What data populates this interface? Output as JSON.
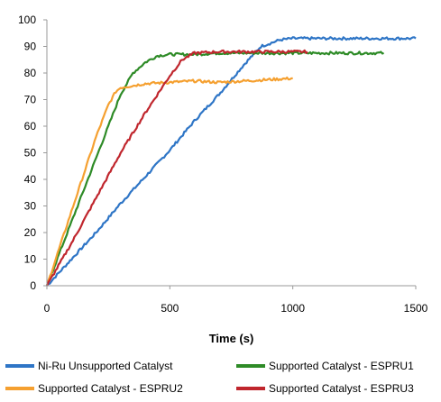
{
  "chart_data": {
    "type": "line",
    "xlabel": "Time (s)",
    "ylabel": "",
    "xlim": [
      0,
      1500
    ],
    "ylim": [
      0,
      100
    ],
    "xticks": [
      "0",
      "500",
      "1000",
      "1500"
    ],
    "yticks": [
      "0",
      "10",
      "20",
      "30",
      "40",
      "50",
      "60",
      "70",
      "80",
      "90",
      "100"
    ],
    "grid": false,
    "legend_position": "bottom",
    "series": [
      {
        "name": "Ni-Ru Unsupported Catalyst",
        "color": "#2e75c6",
        "points": [
          [
            0,
            0
          ],
          [
            100,
            10
          ],
          [
            200,
            20
          ],
          [
            300,
            31
          ],
          [
            400,
            41
          ],
          [
            500,
            51
          ],
          [
            600,
            62
          ],
          [
            700,
            72
          ],
          [
            800,
            83
          ],
          [
            870,
            90
          ],
          [
            950,
            92.5
          ],
          [
            1000,
            93
          ],
          [
            1100,
            93
          ],
          [
            1200,
            93
          ],
          [
            1300,
            93
          ],
          [
            1400,
            93
          ],
          [
            1500,
            93
          ]
        ]
      },
      {
        "name": "Supported Catalyst - ESPRU1",
        "color": "#2e8b27",
        "points": [
          [
            0,
            0
          ],
          [
            50,
            12
          ],
          [
            100,
            24
          ],
          [
            150,
            36
          ],
          [
            200,
            48
          ],
          [
            250,
            60
          ],
          [
            300,
            72
          ],
          [
            350,
            80
          ],
          [
            400,
            84
          ],
          [
            450,
            86.5
          ],
          [
            500,
            87
          ],
          [
            600,
            87
          ],
          [
            700,
            87.5
          ],
          [
            800,
            87.5
          ],
          [
            900,
            87.5
          ],
          [
            1000,
            87.5
          ],
          [
            1100,
            87.5
          ],
          [
            1200,
            87.5
          ],
          [
            1300,
            87.5
          ],
          [
            1370,
            87.5
          ]
        ]
      },
      {
        "name": "Supported Catalyst - ESPRU2",
        "color": "#f5a030",
        "points": [
          [
            0,
            0
          ],
          [
            50,
            14
          ],
          [
            100,
            28
          ],
          [
            150,
            42
          ],
          [
            200,
            56
          ],
          [
            250,
            68
          ],
          [
            280,
            73
          ],
          [
            300,
            74.5
          ],
          [
            400,
            76
          ],
          [
            500,
            76.5
          ],
          [
            600,
            77
          ],
          [
            700,
            76.5
          ],
          [
            800,
            77
          ],
          [
            900,
            77.5
          ],
          [
            1000,
            78
          ]
        ]
      },
      {
        "name": "Supported Catalyst - ESPRU3",
        "color": "#c0262d",
        "points": [
          [
            0,
            0
          ],
          [
            100,
            16
          ],
          [
            200,
            33
          ],
          [
            300,
            50
          ],
          [
            400,
            65
          ],
          [
            500,
            79
          ],
          [
            550,
            85
          ],
          [
            600,
            87.5
          ],
          [
            700,
            88
          ],
          [
            800,
            88
          ],
          [
            900,
            88
          ],
          [
            1000,
            88
          ],
          [
            1060,
            88
          ]
        ]
      }
    ]
  }
}
